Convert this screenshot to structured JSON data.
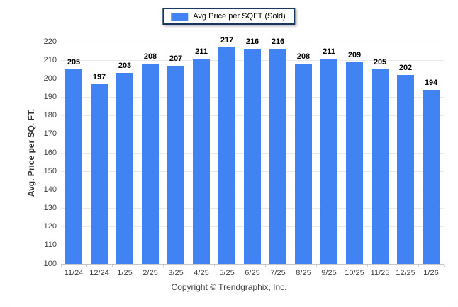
{
  "legend": {
    "label": "Avg Price per SQFT (Sold)"
  },
  "footer": {
    "copyright": "Copyright © Trendgraphix, Inc."
  },
  "colors": {
    "bar": "#4183f2",
    "legend_border": "#17375e",
    "gridline": "#e9e9e9",
    "axis_line": "#c6c6c6",
    "tick_label": "#404040",
    "value_label": "#000000"
  },
  "chart_data": {
    "type": "bar",
    "title": "",
    "xlabel": "",
    "ylabel": "Avg. Price per SQ. FT.",
    "categories": [
      "11/24",
      "12/24",
      "1/25",
      "2/25",
      "3/25",
      "4/25",
      "5/25",
      "6/25",
      "7/25",
      "8/25",
      "9/25",
      "10/25",
      "11/25",
      "12/25",
      "1/26"
    ],
    "series": [
      {
        "name": "Avg Price per SQFT (Sold)",
        "values": [
          205,
          197,
          203,
          208,
          207,
          211,
          217,
          216,
          216,
          208,
          211,
          209,
          205,
          202,
          194
        ]
      }
    ],
    "ylim": [
      100,
      220
    ],
    "ytick_step": 10,
    "grid": true,
    "legend_position": "top",
    "bar_color": "#4183f2",
    "data_labels": true
  }
}
